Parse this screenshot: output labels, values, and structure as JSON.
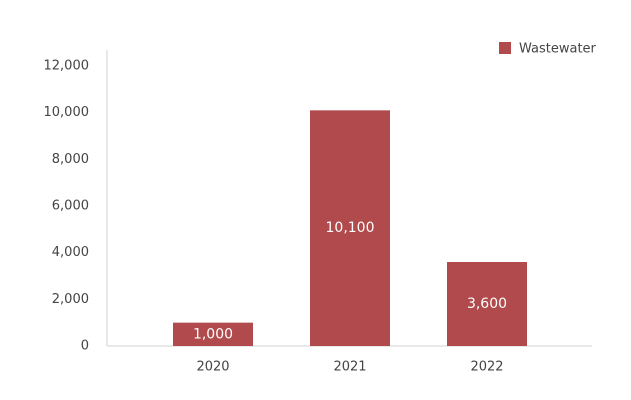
{
  "chart_data": {
    "type": "bar",
    "categories": [
      "2020",
      "2021",
      "2022"
    ],
    "series": [
      {
        "name": "Wastewater",
        "color": "#b04a4c",
        "values": [
          1000,
          10100,
          3600
        ],
        "value_labels": [
          "1,000",
          "10,100",
          "3,600"
        ]
      }
    ],
    "ylim": [
      0,
      12000
    ],
    "yticks": [
      0,
      {
        "value": 2000,
        "label": "2,000"
      },
      {
        "value": 4000,
        "label": "4,000"
      },
      {
        "value": 6000,
        "label": "6,000"
      },
      {
        "value": 8000,
        "label": "8,000"
      },
      {
        "value": 10000,
        "label": "10,000"
      },
      {
        "value": 12000,
        "label": "12,000"
      }
    ],
    "legend": "top-right"
  }
}
